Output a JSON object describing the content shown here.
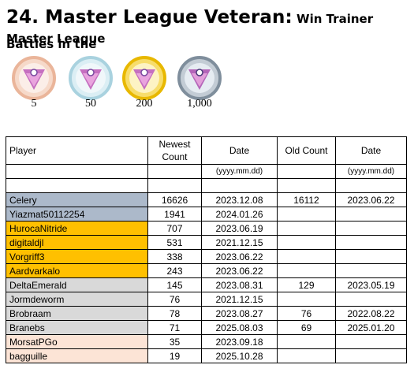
{
  "title": {
    "number_and_name": "24. Master League Veteran:",
    "subtitle_part1": " Win Trainer Battles in the",
    "subtitle_part2": "Master League"
  },
  "medals": [
    {
      "tier": "bronze",
      "label": "5",
      "ring": "#f2c9b3",
      "inner": "#fbe8df"
    },
    {
      "tier": "silver",
      "label": "50",
      "ring": "#bcdce6",
      "inner": "#e8f3f7"
    },
    {
      "tier": "gold",
      "label": "200",
      "ring": "#f1cc3f",
      "inner": "#fdf1b8"
    },
    {
      "tier": "platinum",
      "label": "1,000",
      "ring": "#8f9fae",
      "inner": "#d8e1ea"
    }
  ],
  "table": {
    "headers": {
      "player": "Player",
      "newest_count": "Newest Count",
      "date": "Date",
      "old_count": "Old Count",
      "old_date": "Date"
    },
    "date_format": "(yyyy.mm.dd)",
    "rows": [
      {
        "player": "Celery",
        "newest_count": "16626",
        "date": "2023.12.08",
        "old_count": "16112",
        "old_date": "2023.06.22",
        "tier": "blue"
      },
      {
        "player": "Yiazmat50112254",
        "newest_count": "1941",
        "date": "2024.01.26",
        "old_count": "",
        "old_date": "",
        "tier": "blue"
      },
      {
        "player": "HurocaNitride",
        "newest_count": "707",
        "date": "2023.06.19",
        "old_count": "",
        "old_date": "",
        "tier": "gold"
      },
      {
        "player": "digitaldjl",
        "newest_count": "531",
        "date": "2021.12.15",
        "old_count": "",
        "old_date": "",
        "tier": "gold"
      },
      {
        "player": "Vorgriff3",
        "newest_count": "338",
        "date": "2023.06.22",
        "old_count": "",
        "old_date": "",
        "tier": "gold"
      },
      {
        "player": "Aardvarkalo",
        "newest_count": "243",
        "date": "2023.06.22",
        "old_count": "",
        "old_date": "",
        "tier": "gold"
      },
      {
        "player": "DeltaEmerald",
        "newest_count": "145",
        "date": "2023.08.31",
        "old_count": "129",
        "old_date": "2023.05.19",
        "tier": "grey"
      },
      {
        "player": "Jormdeworm",
        "newest_count": "76",
        "date": "2021.12.15",
        "old_count": "",
        "old_date": "",
        "tier": "grey"
      },
      {
        "player": "Brobraam",
        "newest_count": "78",
        "date": "2023.08.27",
        "old_count": "76",
        "old_date": "2022.08.22",
        "tier": "grey"
      },
      {
        "player": "Branebs",
        "newest_count": "71",
        "date": "2025.08.03",
        "old_count": "69",
        "old_date": "2025.01.20",
        "tier": "grey"
      },
      {
        "player": "MorsatPGo",
        "newest_count": "35",
        "date": "2023.09.18",
        "old_count": "",
        "old_date": "",
        "tier": "peach"
      },
      {
        "player": "bagguille",
        "newest_count": "19",
        "date": "2025.10.28",
        "old_count": "",
        "old_date": "",
        "tier": "peach"
      }
    ]
  },
  "colors": {
    "blue_tier": "#acb9ca",
    "gold_tier": "#ffc000",
    "grey_tier": "#d9d9d9",
    "peach_tier": "#fce4d6"
  }
}
